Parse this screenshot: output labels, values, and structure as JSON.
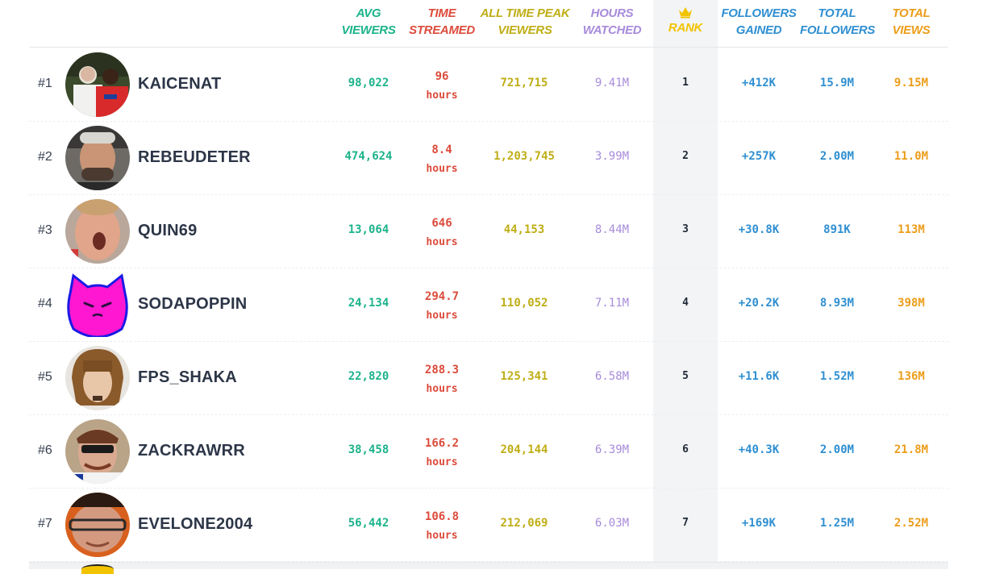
{
  "header": {
    "avg_viewers": [
      "AVG",
      "VIEWERS"
    ],
    "time_streamed": [
      "TIME",
      "STREAMED"
    ],
    "peak_viewers": [
      "ALL TIME PEAK",
      "VIEWERS"
    ],
    "hours_watched": [
      "HOURS",
      "WATCHED"
    ],
    "rank": "RANK",
    "followers_gained": [
      "FOLLOWERS",
      "GAINED"
    ],
    "total_followers": [
      "TOTAL",
      "FOLLOWERS"
    ],
    "total_views": [
      "TOTAL",
      "VIEWS"
    ]
  },
  "rows": [
    {
      "pos": "#1",
      "name": "KAICENAT",
      "avg": "98,022",
      "time": "96",
      "time_unit": "hours",
      "peak": "721,715",
      "hours": "9.41M",
      "rank": "1",
      "gained": "+412K",
      "followers": "15.9M",
      "views": "9.15M"
    },
    {
      "pos": "#2",
      "name": "REBEUDETER",
      "avg": "474,624",
      "time": "8.4",
      "time_unit": "hours",
      "peak": "1,203,745",
      "hours": "3.99M",
      "rank": "2",
      "gained": "+257K",
      "followers": "2.00M",
      "views": "11.0M"
    },
    {
      "pos": "#3",
      "name": "QUIN69",
      "avg": "13,064",
      "time": "646",
      "time_unit": "hours",
      "peak": "44,153",
      "hours": "8.44M",
      "rank": "3",
      "gained": "+30.8K",
      "followers": "891K",
      "views": "113M"
    },
    {
      "pos": "#4",
      "name": "SODAPOPPIN",
      "avg": "24,134",
      "time": "294.7",
      "time_unit": "hours",
      "peak": "110,052",
      "hours": "7.11M",
      "rank": "4",
      "gained": "+20.2K",
      "followers": "8.93M",
      "views": "398M"
    },
    {
      "pos": "#5",
      "name": "FPS_SHAKA",
      "avg": "22,820",
      "time": "288.3",
      "time_unit": "hours",
      "peak": "125,341",
      "hours": "6.58M",
      "rank": "5",
      "gained": "+11.6K",
      "followers": "1.52M",
      "views": "136M"
    },
    {
      "pos": "#6",
      "name": "ZACKRAWRR",
      "avg": "38,458",
      "time": "166.2",
      "time_unit": "hours",
      "peak": "204,144",
      "hours": "6.39M",
      "rank": "6",
      "gained": "+40.3K",
      "followers": "2.00M",
      "views": "21.8M"
    },
    {
      "pos": "#7",
      "name": "EVELONE2004",
      "avg": "56,442",
      "time": "106.8",
      "time_unit": "hours",
      "peak": "212,069",
      "hours": "6.03M",
      "rank": "7",
      "gained": "+169K",
      "followers": "1.25M",
      "views": "2.52M"
    }
  ],
  "colors": {
    "avg": "#1cb38b",
    "time": "#dc4b3b",
    "peak": "#bfae16",
    "hours": "#a78bdb",
    "rank": "#f2c300",
    "gained": "#2f8fd1",
    "followers": "#2f8fd1",
    "views": "#ec9d1a"
  },
  "icons": {
    "rank_header": "crown-icon"
  }
}
